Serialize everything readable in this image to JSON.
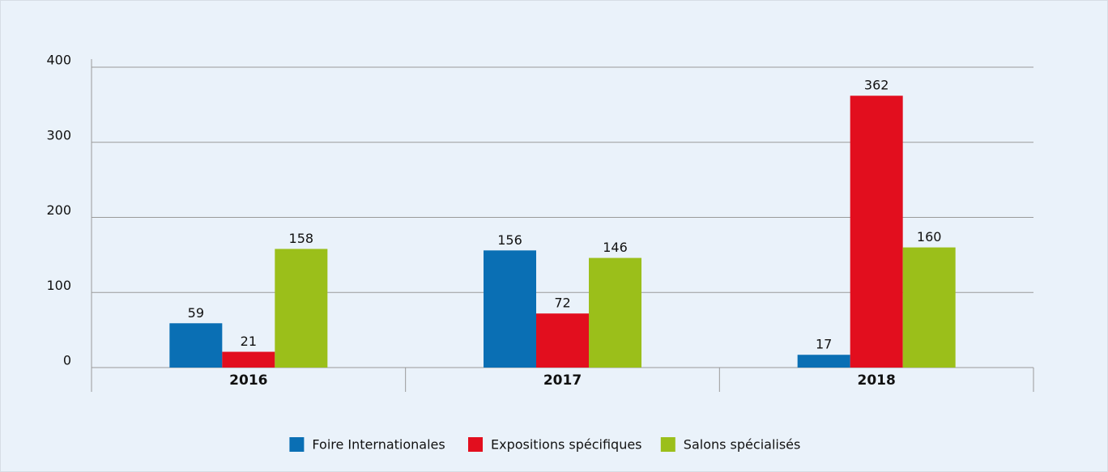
{
  "chart_data": {
    "type": "bar",
    "categories": [
      "2016",
      "2017",
      "2018"
    ],
    "series": [
      {
        "name": "Foire Internationales",
        "color": "#0a6fb4",
        "values": [
          59,
          156,
          17
        ]
      },
      {
        "name": "Expositions spécifiques",
        "color": "#e20e1e",
        "values": [
          21,
          72,
          362
        ]
      },
      {
        "name": "Salons spécialisés",
        "color": "#9bbf1a",
        "values": [
          158,
          146,
          160
        ]
      }
    ],
    "ylim": [
      0,
      400
    ],
    "yticks": [
      0,
      100,
      200,
      300,
      400
    ],
    "grid": true,
    "legend": "bottom"
  }
}
